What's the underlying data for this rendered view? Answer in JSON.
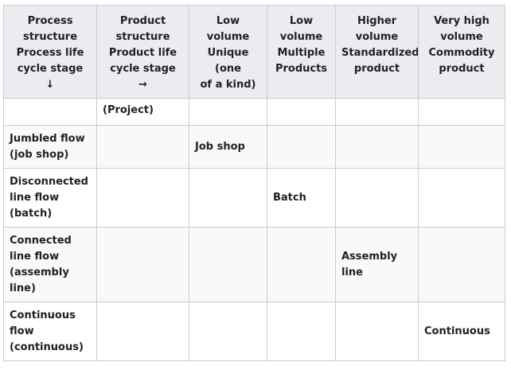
{
  "table": {
    "headers": [
      {
        "lines": [
          "Process",
          "structure",
          "Process life",
          "cycle stage",
          "↓"
        ]
      },
      {
        "lines": [
          "Product",
          "structure",
          "Product life",
          "cycle stage",
          "→"
        ]
      },
      {
        "lines": [
          "Low volume",
          "Unique (one",
          "of a kind)"
        ]
      },
      {
        "lines": [
          "Low",
          "volume",
          "Multiple",
          "Products"
        ]
      },
      {
        "lines": [
          "Higher",
          "volume",
          "Standardized",
          "product"
        ]
      },
      {
        "lines": [
          "Very high",
          "volume",
          "Commodity",
          "product"
        ]
      }
    ],
    "rows": [
      [
        "",
        "(Project)",
        "",
        "",
        "",
        ""
      ],
      [
        "Jumbled flow (job shop)",
        "",
        "Job shop",
        "",
        "",
        ""
      ],
      [
        "Disconnected line flow (batch)",
        "",
        "",
        "Batch",
        "",
        ""
      ],
      [
        "Connected line flow (assembly line)",
        "",
        "",
        "",
        "Assembly line",
        ""
      ],
      [
        "Continuous flow (continuous)",
        "",
        "",
        "",
        "",
        "Continuous"
      ]
    ]
  }
}
